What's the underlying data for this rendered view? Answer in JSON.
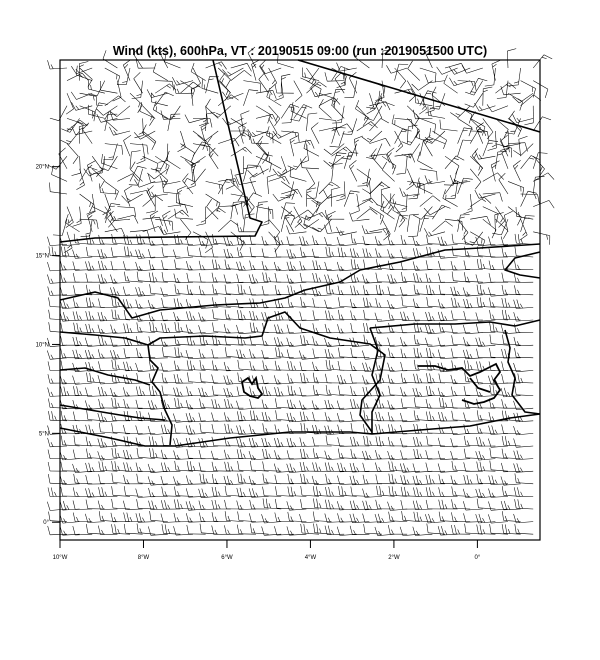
{
  "title": "Wind (kts), 600hPa, VT : 20190515  09:00 (run :2019051500 UTC)",
  "map": {
    "lon_range": [
      -10,
      1.5
    ],
    "lat_range": [
      -1,
      26
    ],
    "lat_ticks": [
      {
        "value": 0,
        "label": "0°"
      },
      {
        "value": 5,
        "label": "5°N"
      },
      {
        "value": 10,
        "label": "10°N"
      },
      {
        "value": 15,
        "label": "15°N"
      },
      {
        "value": 20,
        "label": "20°N"
      }
    ],
    "lon_ticks": [
      {
        "value": -10,
        "label": "10°W"
      },
      {
        "value": -8,
        "label": "8°W"
      },
      {
        "value": -6,
        "label": "6°W"
      },
      {
        "value": -4,
        "label": "4°W"
      },
      {
        "value": -2,
        "label": "2°W"
      },
      {
        "value": 0,
        "label": "0°"
      }
    ],
    "line_color": "#000000",
    "background": "#ffffff"
  }
}
